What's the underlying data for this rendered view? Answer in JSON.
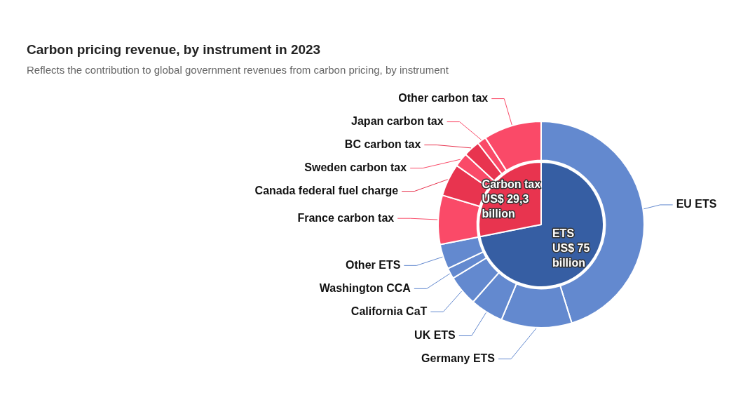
{
  "chart_data": [
    {
      "type": "donut",
      "title": "Carbon pricing revenue, by instrument in 2023",
      "subtitle": "Reflects the contribution to global government revenues from carbon pricing, by instrument",
      "categories": [
        "EU ETS",
        "Germany ETS",
        "UK ETS",
        "California CaT",
        "Washington CCA",
        "Other ETS",
        "France carbon tax",
        "Canada federal fuel charge",
        "Sweden carbon tax",
        "BC carbon tax",
        "Japan carbon tax",
        "Other carbon tax"
      ],
      "values": [
        45.2,
        11.1,
        5.2,
        4.8,
        1.7,
        3.9,
        7.7,
        5.1,
        2.2,
        2.6,
        1.4,
        9.1
      ],
      "colors": [
        "#6389cf",
        "#6389cf",
        "#6389cf",
        "#6389cf",
        "#6389cf",
        "#6389cf",
        "#fa4a68",
        "#e8344f",
        "#fa4a68",
        "#e8344f",
        "#fa4a68",
        "#fa4a68"
      ]
    },
    {
      "type": "pie",
      "categories": [
        "ETS",
        "Carbon tax"
      ],
      "values": [
        71.9,
        28.1
      ],
      "colors": [
        "#365ea3",
        "#e8344f"
      ],
      "value_labels": [
        "US$ 75 billion",
        "US$ 29,3 billion"
      ]
    }
  ]
}
